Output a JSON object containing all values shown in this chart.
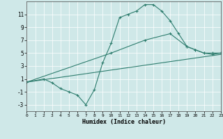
{
  "xlabel": "Humidex (Indice chaleur)",
  "ylabel": "",
  "xlim": [
    0,
    23
  ],
  "ylim": [
    -4,
    13
  ],
  "xticks": [
    0,
    1,
    2,
    3,
    4,
    5,
    6,
    7,
    8,
    9,
    10,
    11,
    12,
    13,
    14,
    15,
    16,
    17,
    18,
    19,
    20,
    21,
    22,
    23
  ],
  "yticks": [
    -3,
    -1,
    1,
    3,
    5,
    7,
    9,
    11
  ],
  "bg_color": "#cfe8e8",
  "line_color": "#2e7d6e",
  "line1_x": [
    0,
    2,
    3,
    4,
    5,
    6,
    7,
    8,
    9,
    10,
    11,
    12,
    13,
    14,
    15,
    16,
    17,
    18,
    19,
    20,
    21,
    22,
    23
  ],
  "line1_y": [
    0.5,
    1.0,
    0.4,
    -0.5,
    -1.0,
    -1.5,
    -3.0,
    -0.7,
    3.5,
    6.5,
    10.5,
    11.0,
    11.5,
    12.5,
    12.5,
    11.5,
    10.0,
    8.0,
    6.0,
    5.5,
    5.0,
    5.0,
    5.0
  ],
  "line2_x": [
    0,
    10,
    14,
    17,
    19,
    20,
    21,
    22,
    23
  ],
  "line2_y": [
    0.5,
    5.0,
    7.0,
    8.0,
    6.0,
    5.5,
    5.0,
    4.8,
    5.0
  ],
  "line3_x": [
    0,
    23
  ],
  "line3_y": [
    0.5,
    4.8
  ]
}
